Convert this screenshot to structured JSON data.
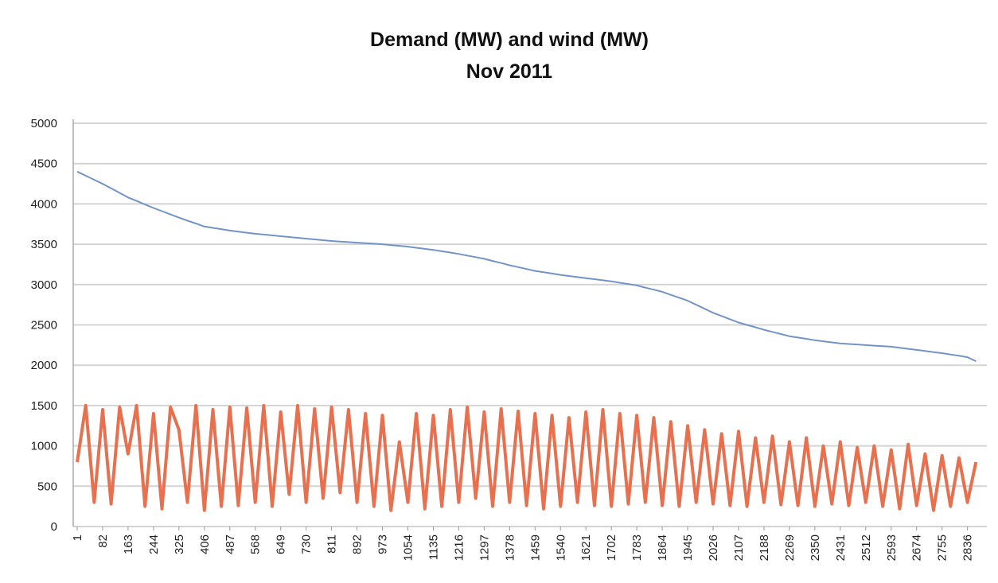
{
  "chart_data": {
    "type": "line",
    "title": "Demand (MW) and wind (MW)",
    "subtitle": "Nov 2011",
    "x": [
      1,
      28,
      55,
      82,
      109,
      136,
      163,
      190,
      217,
      244,
      271,
      298,
      325,
      352,
      379,
      406,
      433,
      460,
      487,
      514,
      541,
      568,
      595,
      622,
      649,
      676,
      703,
      730,
      757,
      784,
      811,
      838,
      865,
      892,
      919,
      946,
      973,
      1000,
      1027,
      1054,
      1081,
      1108,
      1135,
      1162,
      1189,
      1216,
      1243,
      1270,
      1297,
      1324,
      1351,
      1378,
      1405,
      1432,
      1459,
      1486,
      1513,
      1540,
      1567,
      1594,
      1621,
      1648,
      1675,
      1702,
      1729,
      1756,
      1783,
      1810,
      1837,
      1864,
      1891,
      1918,
      1945,
      1972,
      1999,
      2026,
      2053,
      2080,
      2107,
      2134,
      2161,
      2188,
      2215,
      2242,
      2269,
      2296,
      2323,
      2350,
      2377,
      2404,
      2431,
      2458,
      2485,
      2512,
      2539,
      2566,
      2593,
      2620,
      2647,
      2674,
      2701,
      2728,
      2755,
      2782,
      2809,
      2836,
      2863
    ],
    "series": [
      {
        "color": "#7394c8",
        "values": [
          4400,
          4350,
          4300,
          4250,
          4193,
          4137,
          4080,
          4037,
          3993,
          3950,
          3910,
          3870,
          3830,
          3793,
          3757,
          3720,
          3703,
          3687,
          3670,
          3657,
          3643,
          3630,
          3620,
          3610,
          3600,
          3590,
          3580,
          3570,
          3560,
          3550,
          3540,
          3533,
          3527,
          3520,
          3513,
          3507,
          3500,
          3490,
          3480,
          3470,
          3457,
          3443,
          3430,
          3413,
          3397,
          3380,
          3360,
          3340,
          3320,
          3293,
          3267,
          3240,
          3217,
          3193,
          3170,
          3153,
          3137,
          3120,
          3107,
          3093,
          3080,
          3067,
          3053,
          3040,
          3023,
          3007,
          2990,
          2963,
          2937,
          2910,
          2873,
          2837,
          2800,
          2750,
          2700,
          2650,
          2610,
          2570,
          2530,
          2500,
          2470,
          2440,
          2413,
          2387,
          2360,
          2343,
          2327,
          2310,
          2297,
          2283,
          2270,
          2263,
          2257,
          2250,
          2243,
          2237,
          2230,
          2217,
          2203,
          2190,
          2177,
          2163,
          2150,
          2133,
          2117,
          2100,
          2050
        ]
      },
      {
        "color": "#e8704e",
        "values": [
          800,
          1500,
          300,
          1450,
          280,
          1480,
          900,
          1500,
          250,
          1400,
          220,
          1480,
          1200,
          300,
          1500,
          200,
          1450,
          250,
          1480,
          260,
          1470,
          300,
          1500,
          250,
          1420,
          400,
          1500,
          300,
          1460,
          350,
          1480,
          420,
          1450,
          300,
          1400,
          250,
          1380,
          200,
          1050,
          300,
          1400,
          220,
          1380,
          250,
          1450,
          300,
          1480,
          350,
          1420,
          250,
          1460,
          300,
          1430,
          260,
          1400,
          220,
          1380,
          250,
          1350,
          300,
          1420,
          260,
          1450,
          250,
          1400,
          280,
          1380,
          300,
          1350,
          260,
          1300,
          250,
          1250,
          300,
          1200,
          280,
          1150,
          260,
          1180,
          250,
          1100,
          300,
          1120,
          270,
          1050,
          260,
          1100,
          250,
          1000,
          280,
          1050,
          260,
          980,
          300,
          1000,
          250,
          950,
          220,
          1020,
          260,
          900,
          200,
          880,
          250,
          850,
          300,
          800
        ]
      }
    ],
    "xlim": [
      1,
      2880
    ],
    "xticks": [
      1,
      82,
      163,
      244,
      325,
      406,
      487,
      568,
      649,
      730,
      811,
      892,
      973,
      1054,
      1135,
      1216,
      1297,
      1378,
      1459,
      1540,
      1621,
      1702,
      1783,
      1864,
      1945,
      2026,
      2107,
      2188,
      2269,
      2350,
      2431,
      2512,
      2593,
      2674,
      2755,
      2836
    ],
    "ylim": [
      0,
      5000
    ],
    "yticks": [
      0,
      500,
      1000,
      1500,
      2000,
      2500,
      3000,
      3500,
      4000,
      4500,
      5000
    ],
    "grid": true
  }
}
